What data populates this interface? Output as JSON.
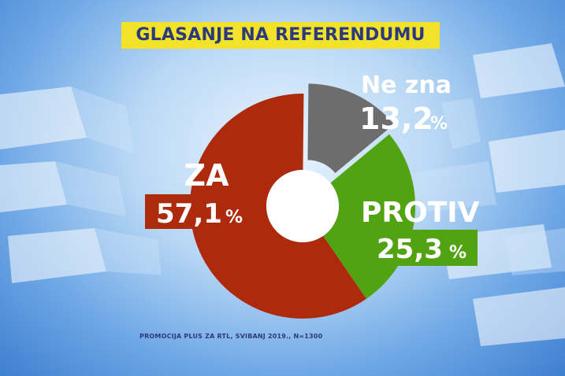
{
  "title": "GLASANJE NA REFERENDUMU",
  "source": "PROMOCIJA PLUS ZA RTL, SVIBANJ 2019., N=1300",
  "colors": {
    "za": "#ad2a0d",
    "protiv": "#52a312",
    "ne_zna": "#6d6d6d",
    "title_bg": "#f3e22a",
    "title_text": "#2c3a7c"
  },
  "chart_data": {
    "type": "pie",
    "title": "GLASANJE NA REFERENDUMU",
    "categories": [
      "ZA",
      "PROTIV",
      "Ne zna"
    ],
    "values": [
      57.1,
      25.3,
      13.2
    ],
    "value_labels": [
      "57,1",
      "25,3",
      "13,2"
    ],
    "unit": "%",
    "style": "donut with exploded 'Ne zna' slice"
  }
}
